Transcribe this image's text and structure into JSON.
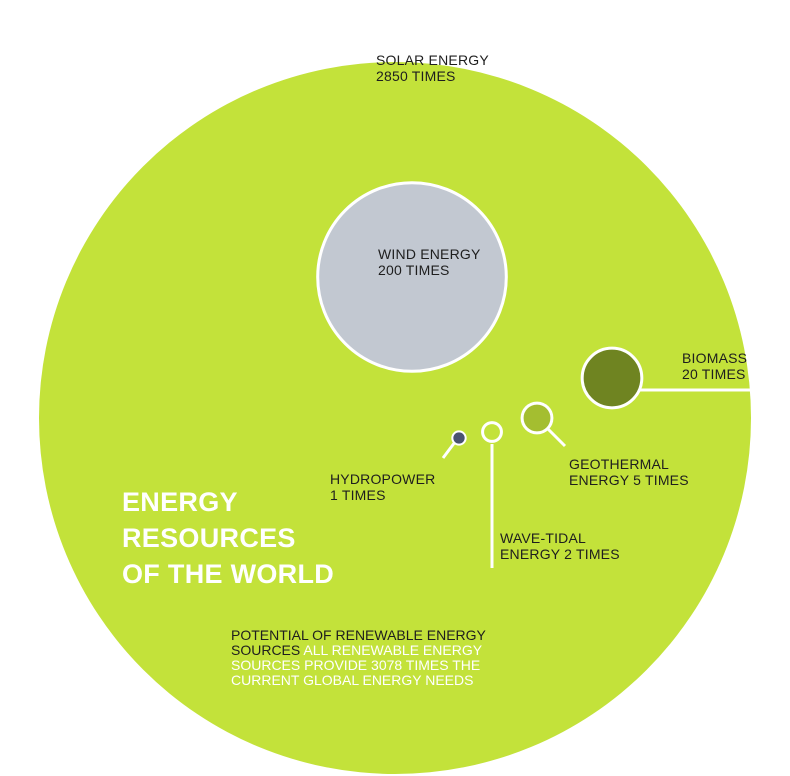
{
  "chart_data": {
    "type": "bubble",
    "title": [
      "ENERGY",
      "RESOURCES",
      "OF THE WORLD"
    ],
    "footnote": {
      "dark": "POTENTIAL OF RENEWABLE ENERGY SOURCES",
      "light": "ALL RENEWABLE ENERGY SOURCES PROVIDE 3078 TIMES THE CURRENT GLOBAL ENERGY NEEDS"
    },
    "series": [
      {
        "name": "SOLAR ENERGY",
        "value": 2850,
        "label": [
          "SOLAR ENERGY",
          "2850 TIMES"
        ],
        "color": "#c3e23a"
      },
      {
        "name": "WIND ENERGY",
        "value": 200,
        "label": [
          "WIND ENERGY",
          "200 TIMES"
        ],
        "color": "#c2c8d1"
      },
      {
        "name": "BIOMASS",
        "value": 20,
        "label": [
          "BIOMASS",
          "20 TIMES"
        ],
        "color": "#6f8421"
      },
      {
        "name": "GEOTHERMAL ENERGY",
        "value": 5,
        "label": [
          "GEOTHERMAL",
          "ENERGY 5 TIMES"
        ],
        "color": "#a4be30"
      },
      {
        "name": "WAVE-TIDAL ENERGY",
        "value": 2,
        "label": [
          "WAVE-TIDAL",
          "ENERGY 2 TIMES"
        ],
        "color": "#c3e23a"
      },
      {
        "name": "HYDROPOWER",
        "value": 1,
        "label": [
          "HYDROPOWER",
          "1 TIMES"
        ],
        "color": "#4a5370"
      }
    ]
  }
}
